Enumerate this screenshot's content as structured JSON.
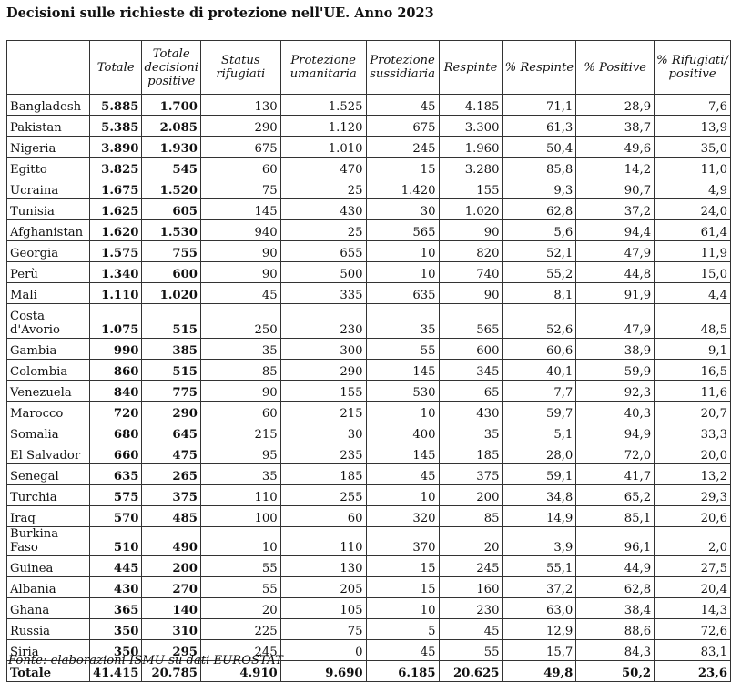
{
  "title": "Decisioni sulle richieste di protezione nell'UE. Anno 2023",
  "columns": [
    "",
    "Totale",
    "Totale decisioni positive",
    "Status rifugiati",
    "Protezione umanitaria",
    "Protezione sussidiaria",
    "Respinte",
    "% Respinte",
    "% Positive",
    "% Rifugiati/ positive"
  ],
  "rows": [
    [
      "Bangladesh",
      "5.885",
      "1.700",
      "130",
      "1.525",
      "45",
      "4.185",
      "71,1",
      "28,9",
      "7,6"
    ],
    [
      "Pakistan",
      "5.385",
      "2.085",
      "290",
      "1.120",
      "675",
      "3.300",
      "61,3",
      "38,7",
      "13,9"
    ],
    [
      "Nigeria",
      "3.890",
      "1.930",
      "675",
      "1.010",
      "245",
      "1.960",
      "50,4",
      "49,6",
      "35,0"
    ],
    [
      "Egitto",
      "3.825",
      "545",
      "60",
      "470",
      "15",
      "3.280",
      "85,8",
      "14,2",
      "11,0"
    ],
    [
      "Ucraina",
      "1.675",
      "1.520",
      "75",
      "25",
      "1.420",
      "155",
      "9,3",
      "90,7",
      "4,9"
    ],
    [
      "Tunisia",
      "1.625",
      "605",
      "145",
      "430",
      "30",
      "1.020",
      "62,8",
      "37,2",
      "24,0"
    ],
    [
      "Afghanistan",
      "1.620",
      "1.530",
      "940",
      "25",
      "565",
      "90",
      "5,6",
      "94,4",
      "61,4"
    ],
    [
      "Georgia",
      "1.575",
      "755",
      "90",
      "655",
      "10",
      "820",
      "52,1",
      "47,9",
      "11,9"
    ],
    [
      "Perù",
      "1.340",
      "600",
      "90",
      "500",
      "10",
      "740",
      "55,2",
      "44,8",
      "15,0"
    ],
    [
      "Mali",
      "1.110",
      "1.020",
      "45",
      "335",
      "635",
      "90",
      "8,1",
      "91,9",
      "4,4"
    ],
    [
      "Costa d'Avorio",
      "1.075",
      "515",
      "250",
      "230",
      "35",
      "565",
      "52,6",
      "47,9",
      "48,5"
    ],
    [
      "Gambia",
      "990",
      "385",
      "35",
      "300",
      "55",
      "600",
      "60,6",
      "38,9",
      "9,1"
    ],
    [
      "Colombia",
      "860",
      "515",
      "85",
      "290",
      "145",
      "345",
      "40,1",
      "59,9",
      "16,5"
    ],
    [
      "Venezuela",
      "840",
      "775",
      "90",
      "155",
      "530",
      "65",
      "7,7",
      "92,3",
      "11,6"
    ],
    [
      "Marocco",
      "720",
      "290",
      "60",
      "215",
      "10",
      "430",
      "59,7",
      "40,3",
      "20,7"
    ],
    [
      "Somalia",
      "680",
      "645",
      "215",
      "30",
      "400",
      "35",
      "5,1",
      "94,9",
      "33,3"
    ],
    [
      "El Salvador",
      "660",
      "475",
      "95",
      "235",
      "145",
      "185",
      "28,0",
      "72,0",
      "20,0"
    ],
    [
      "Senegal",
      "635",
      "265",
      "35",
      "185",
      "45",
      "375",
      "59,1",
      "41,7",
      "13,2"
    ],
    [
      "Turchia",
      "575",
      "375",
      "110",
      "255",
      "10",
      "200",
      "34,8",
      "65,2",
      "29,3"
    ],
    [
      "Iraq",
      "570",
      "485",
      "100",
      "60",
      "320",
      "85",
      "14,9",
      "85,1",
      "20,6"
    ],
    [
      "Burkina Faso",
      "510",
      "490",
      "10",
      "110",
      "370",
      "20",
      "3,9",
      "96,1",
      "2,0"
    ],
    [
      "Guinea",
      "445",
      "200",
      "55",
      "130",
      "15",
      "245",
      "55,1",
      "44,9",
      "27,5"
    ],
    [
      "Albania",
      "430",
      "270",
      "55",
      "205",
      "15",
      "160",
      "37,2",
      "62,8",
      "20,4"
    ],
    [
      "Ghana",
      "365",
      "140",
      "20",
      "105",
      "10",
      "230",
      "63,0",
      "38,4",
      "14,3"
    ],
    [
      "Russia",
      "350",
      "310",
      "225",
      "75",
      "5",
      "45",
      "12,9",
      "88,6",
      "72,6"
    ],
    [
      "Siria",
      "350",
      "295",
      "245",
      "0",
      "45",
      "55",
      "15,7",
      "84,3",
      "83,1"
    ]
  ],
  "total": [
    "Totale",
    "41.415",
    "20.785",
    "4.910",
    "9.690",
    "6.185",
    "20.625",
    "49,8",
    "50,2",
    "23,6"
  ],
  "source": "Fonte: elaborazioni ISMU su dati EUROSTAT"
}
